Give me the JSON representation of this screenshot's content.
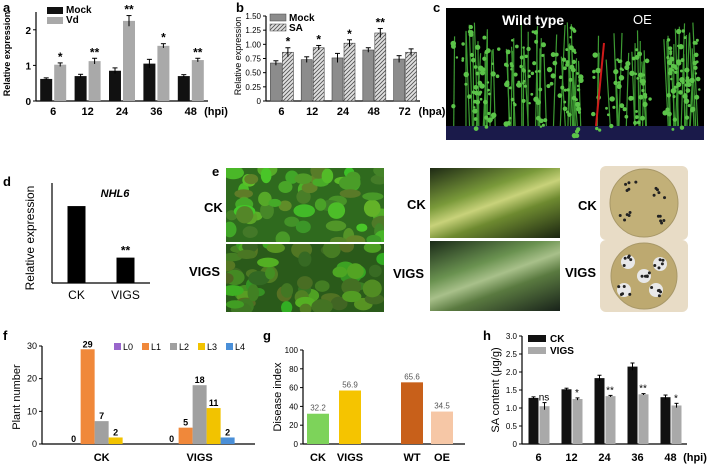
{
  "panel_labels": {
    "a": "a",
    "b": "b",
    "c": "c",
    "d": "d",
    "e": "e",
    "f": "f",
    "g": "g",
    "h": "h"
  },
  "photo_c": {
    "left_label": "Wild type",
    "right_label": "OE"
  },
  "photo_e": {
    "ck": "CK",
    "vigs": "VIGS"
  },
  "colors": {
    "black": "#111111",
    "grey": "#a9a9a9",
    "hatch": "#8a8a8a",
    "L0": "#9966cc",
    "L1": "#f0883a",
    "L2": "#a0a0a0",
    "L3": "#f2c300",
    "L4": "#4a8fd8",
    "g_ck": "#7dd35a",
    "g_vigs": "#f5c400",
    "g_wt": "#c8601a",
    "g_oe": "#f6c7a6"
  },
  "chart_data": [
    {
      "id": "a",
      "type": "bar",
      "categories": [
        "6",
        "12",
        "24",
        "36",
        "48"
      ],
      "x_unit": "(hpi)",
      "series": [
        {
          "name": "Mock",
          "values": [
            0.62,
            0.7,
            0.85,
            1.05,
            0.7
          ],
          "errors": [
            0.03,
            0.05,
            0.08,
            0.12,
            0.04
          ]
        },
        {
          "name": "Vd",
          "values": [
            1.02,
            1.12,
            2.25,
            1.55,
            1.15
          ],
          "errors": [
            0.05,
            0.08,
            0.15,
            0.06,
            0.05
          ]
        }
      ],
      "significance": [
        "*",
        "**",
        "**",
        "*",
        "**"
      ],
      "ylabel": "Relative expression",
      "ylim": [
        0,
        2.5
      ],
      "yticks": [
        0,
        1,
        2
      ]
    },
    {
      "id": "b",
      "type": "bar",
      "categories": [
        "6",
        "12",
        "24",
        "48",
        "72"
      ],
      "x_unit": "(hpa)",
      "series": [
        {
          "name": "Mock",
          "values": [
            0.67,
            0.73,
            0.76,
            0.9,
            0.74
          ],
          "errors": [
            0.04,
            0.05,
            0.08,
            0.04,
            0.06
          ]
        },
        {
          "name": "SA",
          "values": [
            0.86,
            0.94,
            1.02,
            1.2,
            0.86
          ],
          "errors": [
            0.08,
            0.04,
            0.06,
            0.08,
            0.06
          ]
        }
      ],
      "significance": [
        "*",
        "*",
        "*",
        "**",
        ""
      ],
      "ylabel": "Relative expression",
      "ylim": [
        0,
        1.5
      ],
      "yticks": [
        "0",
        "0.25",
        "0.50",
        "0.75",
        "1.00",
        "1.25",
        "1.50"
      ]
    },
    {
      "id": "d",
      "type": "bar",
      "title": "NHL6",
      "categories": [
        "CK",
        "VIGS"
      ],
      "values": [
        1.0,
        0.33
      ],
      "significance": [
        "",
        "**"
      ],
      "ylabel": "Relative expression",
      "ylim": [
        0,
        1.3
      ],
      "yticks": []
    },
    {
      "id": "f",
      "type": "bar",
      "groups": [
        "CK",
        "VIGS"
      ],
      "legend": [
        "L0",
        "L1",
        "L2",
        "L3",
        "L4"
      ],
      "series": [
        {
          "name": "L0",
          "values": [
            0,
            0
          ]
        },
        {
          "name": "L1",
          "values": [
            29,
            5
          ]
        },
        {
          "name": "L2",
          "values": [
            7,
            18
          ]
        },
        {
          "name": "L3",
          "values": [
            2,
            11
          ]
        },
        {
          "name": "L4",
          "values": [
            0,
            2
          ]
        }
      ],
      "data_labels": {
        "CK": [
          "0",
          "29",
          "7",
          "2",
          ""
        ],
        "VIGS": [
          "0",
          "5",
          "18",
          "11",
          "2"
        ]
      },
      "ylabel": "Plant number",
      "ylim": [
        0,
        30
      ],
      "yticks": [
        0,
        10,
        20,
        30
      ],
      "legend_position": "top-right"
    },
    {
      "id": "g",
      "type": "bar",
      "categories": [
        "CK",
        "VIGS",
        "WT",
        "OE"
      ],
      "values": [
        32.2,
        56.9,
        65.6,
        34.5
      ],
      "data_labels": [
        "32.2",
        "56.9",
        "65.6",
        "34.5"
      ],
      "ylabel": "Disease index",
      "ylim": [
        0,
        100
      ],
      "yticks": [
        0,
        20,
        40,
        60,
        80,
        100
      ]
    },
    {
      "id": "h",
      "type": "bar",
      "categories": [
        "6",
        "12",
        "24",
        "36",
        "48"
      ],
      "x_unit": "(hpi)",
      "series": [
        {
          "name": "CK",
          "values": [
            1.28,
            1.52,
            1.83,
            2.15,
            1.3
          ],
          "errors": [
            0.03,
            0.03,
            0.08,
            0.1,
            0.06
          ]
        },
        {
          "name": "VIGS",
          "values": [
            1.05,
            1.25,
            1.33,
            1.38,
            1.07
          ],
          "errors": [
            0.1,
            0.03,
            0.02,
            0.02,
            0.06
          ]
        }
      ],
      "significance": [
        "ns",
        "*",
        "**",
        "**",
        "*"
      ],
      "ylabel": "SA content (μg/g)",
      "ylim": [
        0,
        3.0
      ],
      "yticks": [
        "0",
        "0.5",
        "1.0",
        "1.5",
        "2.0",
        "2.5",
        "3.0"
      ],
      "legend_position": "top-left"
    }
  ]
}
